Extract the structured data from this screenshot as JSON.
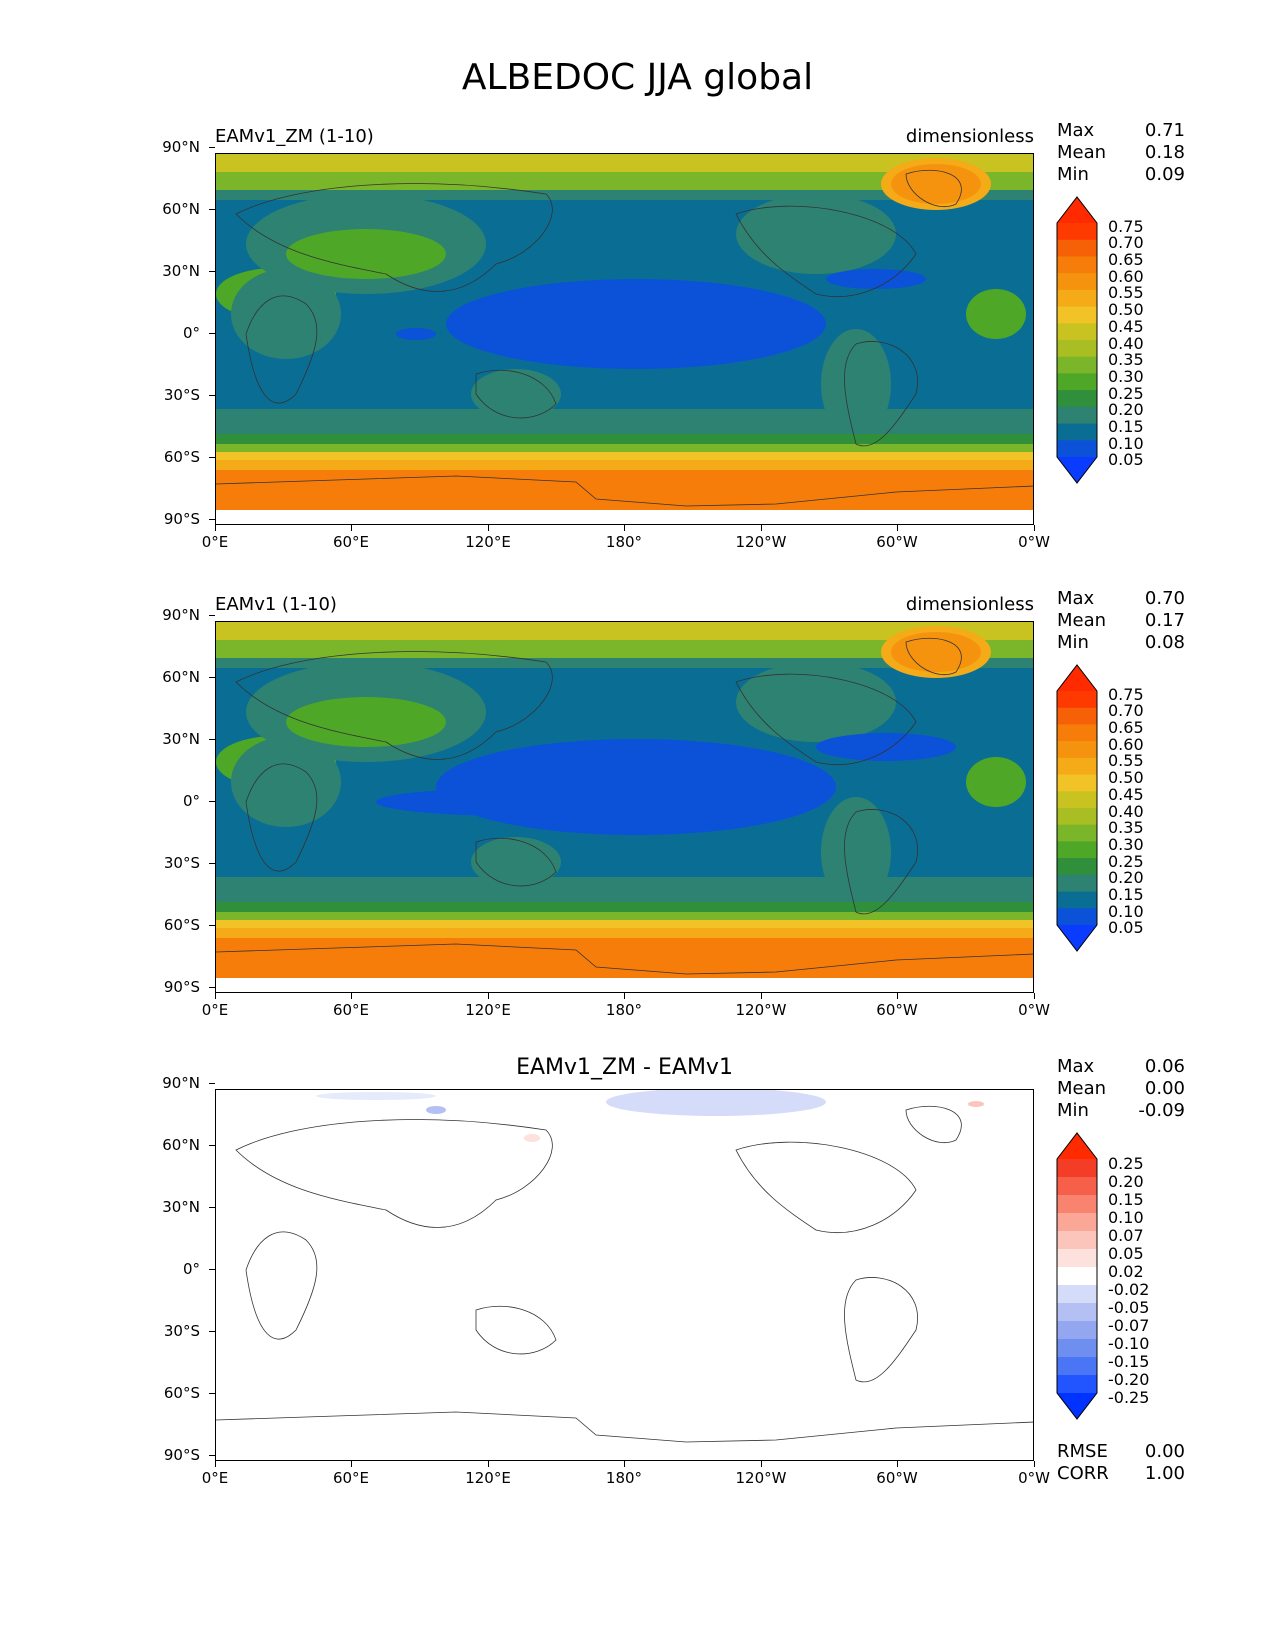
{
  "title": "ALBEDOC JJA global",
  "axes": {
    "yticks": [
      "90°N",
      "60°N",
      "30°N",
      "0°",
      "30°S",
      "60°S",
      "90°S"
    ],
    "xticks": [
      "0°E",
      "60°E",
      "120°E",
      "180°",
      "120°W",
      "60°W",
      "0°W"
    ]
  },
  "panels": [
    {
      "name": "EAMv1_ZM (1-10)",
      "units": "dimensionless",
      "stats": {
        "max_label": "Max",
        "max": "0.71",
        "mean_label": "Mean",
        "mean": "0.18",
        "min_label": "Min",
        "min": "0.09"
      },
      "colorbar_ticks": [
        "0.75",
        "0.70",
        "0.65",
        "0.60",
        "0.55",
        "0.50",
        "0.45",
        "0.40",
        "0.35",
        "0.30",
        "0.25",
        "0.20",
        "0.15",
        "0.10",
        "0.05"
      ]
    },
    {
      "name": "EAMv1 (1-10)",
      "units": "dimensionless",
      "stats": {
        "max_label": "Max",
        "max": "0.70",
        "mean_label": "Mean",
        "mean": "0.17",
        "min_label": "Min",
        "min": "0.08"
      },
      "colorbar_ticks": [
        "0.75",
        "0.70",
        "0.65",
        "0.60",
        "0.55",
        "0.50",
        "0.45",
        "0.40",
        "0.35",
        "0.30",
        "0.25",
        "0.20",
        "0.15",
        "0.10",
        "0.05"
      ]
    },
    {
      "name": "EAMv1_ZM - EAMv1",
      "stats": {
        "max_label": "Max",
        "max": "0.06",
        "mean_label": "Mean",
        "mean": "0.00",
        "min_label": "Min",
        "min": "-0.09"
      },
      "colorbar_ticks": [
        "0.25",
        "0.20",
        "0.15",
        "0.10",
        "0.07",
        "0.05",
        "0.02",
        "-0.02",
        "-0.05",
        "-0.07",
        "-0.10",
        "-0.15",
        "-0.20",
        "-0.25"
      ],
      "metrics": {
        "rmse_label": "RMSE",
        "rmse": "0.00",
        "corr_label": "CORR",
        "corr": "1.00"
      }
    }
  ],
  "colors": {
    "seq": [
      "#0a3cff",
      "#0b52d8",
      "#0a6e94",
      "#2e8272",
      "#2f8f3a",
      "#4ea727",
      "#7ab52a",
      "#a8be22",
      "#c8c320",
      "#f1c326",
      "#f5aa18",
      "#f5930e",
      "#f67d0a",
      "#f66108",
      "#ff3a00",
      "#ff2a00"
    ],
    "div": [
      "#0033ff",
      "#2255ff",
      "#4a76f5",
      "#6f8ff0",
      "#93a6f0",
      "#b4c0f4",
      "#d5dcfa",
      "#ffffff",
      "#fde1dc",
      "#fcc5bc",
      "#fba797",
      "#f8836e",
      "#f6604a",
      "#f33d26",
      "#ff2a00"
    ]
  }
}
